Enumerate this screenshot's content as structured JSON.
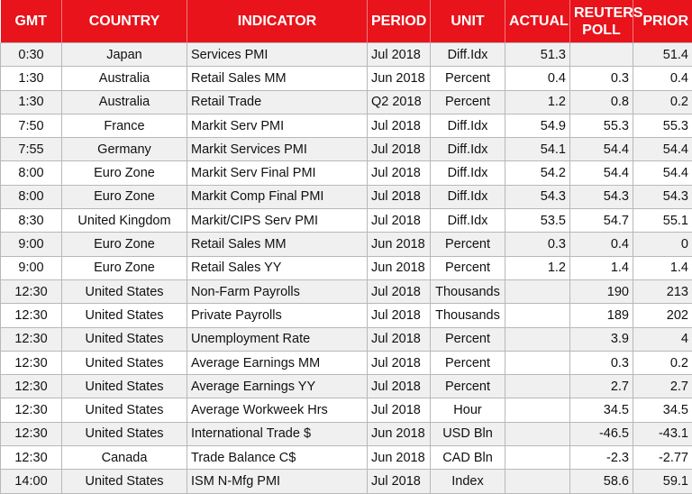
{
  "table": {
    "columns": [
      "GMT",
      "COUNTRY",
      "INDICATOR",
      "PERIOD",
      "UNIT",
      "ACTUAL",
      "REUTERS POLL",
      "PRIOR"
    ],
    "rows": [
      [
        "0:30",
        "Japan",
        "Services PMI",
        "Jul 2018",
        "Diff.Idx",
        "51.3",
        null,
        "51.4"
      ],
      [
        "1:30",
        "Australia",
        "Retail Sales MM",
        "Jun 2018",
        "Percent",
        "0.4",
        "0.3",
        "0.4"
      ],
      [
        "1:30",
        "Australia",
        "Retail Trade",
        "Q2 2018",
        "Percent",
        "1.2",
        "0.8",
        "0.2"
      ],
      [
        "7:50",
        "France",
        "Markit Serv PMI",
        "Jul 2018",
        "Diff.Idx",
        "54.9",
        "55.3",
        "55.3"
      ],
      [
        "7:55",
        "Germany",
        "Markit Services PMI",
        "Jul 2018",
        "Diff.Idx",
        "54.1",
        "54.4",
        "54.4"
      ],
      [
        "8:00",
        "Euro Zone",
        "Markit Serv Final PMI",
        "Jul 2018",
        "Diff.Idx",
        "54.2",
        "54.4",
        "54.4"
      ],
      [
        "8:00",
        "Euro Zone",
        "Markit Comp Final PMI",
        "Jul 2018",
        "Diff.Idx",
        "54.3",
        "54.3",
        "54.3"
      ],
      [
        "8:30",
        "United Kingdom",
        "Markit/CIPS Serv PMI",
        "Jul 2018",
        "Diff.Idx",
        "53.5",
        "54.7",
        "55.1"
      ],
      [
        "9:00",
        "Euro Zone",
        "Retail Sales MM",
        "Jun 2018",
        "Percent",
        "0.3",
        "0.4",
        "0"
      ],
      [
        "9:00",
        "Euro Zone",
        "Retail Sales YY",
        "Jun 2018",
        "Percent",
        "1.2",
        "1.4",
        "1.4"
      ],
      [
        "12:30",
        "United States",
        "Non-Farm Payrolls",
        "Jul 2018",
        "Thousands",
        null,
        "190",
        "213"
      ],
      [
        "12:30",
        "United States",
        "Private Payrolls",
        "Jul 2018",
        "Thousands",
        null,
        "189",
        "202"
      ],
      [
        "12:30",
        "United States",
        "Unemployment Rate",
        "Jul 2018",
        "Percent",
        null,
        "3.9",
        "4"
      ],
      [
        "12:30",
        "United States",
        "Average Earnings MM",
        "Jul 2018",
        "Percent",
        null,
        "0.3",
        "0.2"
      ],
      [
        "12:30",
        "United States",
        "Average Earnings YY",
        "Jul 2018",
        "Percent",
        null,
        "2.7",
        "2.7"
      ],
      [
        "12:30",
        "United States",
        "Average Workweek Hrs",
        "Jul 2018",
        "Hour",
        null,
        "34.5",
        "34.5"
      ],
      [
        "12:30",
        "United States",
        "International Trade $",
        "Jun 2018",
        "USD Bln",
        null,
        "-46.5",
        "-43.1"
      ],
      [
        "12:30",
        "Canada",
        "Trade Balance C$",
        "Jun 2018",
        "CAD Bln",
        null,
        "-2.3",
        "-2.77"
      ],
      [
        "14:00",
        "United States",
        "ISM N-Mfg PMI",
        "Jul 2018",
        "Index",
        null,
        "58.6",
        "59.1"
      ]
    ]
  }
}
